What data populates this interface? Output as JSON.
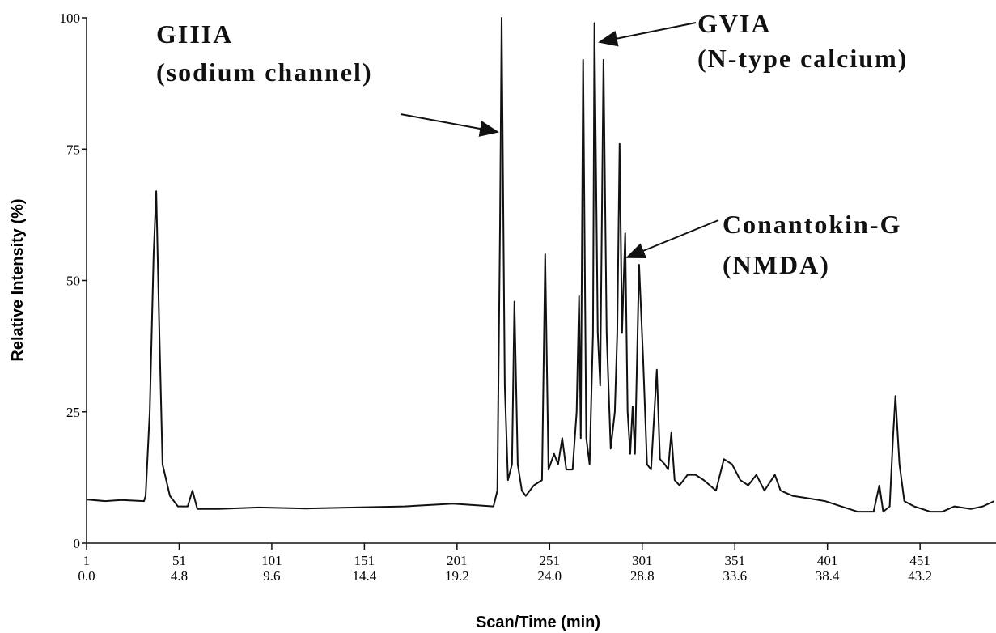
{
  "chart_data": {
    "type": "line",
    "x_label": "Scan/Time (min)",
    "y_label": "Relative Intensity (%)",
    "x": [
      1,
      11,
      19.8,
      32,
      32.9,
      35.1,
      37.2,
      38.6,
      40.3,
      42,
      46,
      50.3,
      55.6,
      58.2,
      60.8,
      72.2,
      94,
      120.2,
      146.4,
      172.6,
      198.8,
      220.7,
      222.8,
      224.2,
      225.1,
      226.8,
      228.5,
      230.7,
      232,
      233.8,
      236,
      238.1,
      242.5,
      246.9,
      248.6,
      250.4,
      253.4,
      255.6,
      257.8,
      260,
      263.4,
      265.6,
      266.9,
      267.8,
      269.1,
      270.8,
      272.6,
      274.4,
      275.2,
      277,
      278.3,
      280.1,
      281.8,
      284,
      286.2,
      287.5,
      288.8,
      290.1,
      291.8,
      293.1,
      294.5,
      295.8,
      297.1,
      299.3,
      301.5,
      303.6,
      305.8,
      308.9,
      310.6,
      313.2,
      315,
      316.7,
      318.5,
      321.1,
      325.5,
      329.8,
      334.2,
      340.8,
      345.1,
      349.5,
      353.9,
      358.2,
      362.6,
      367,
      372.6,
      375.7,
      382.2,
      391,
      399.7,
      408.4,
      417.2,
      425.9,
      429,
      431.1,
      434.6,
      436.4,
      437.7,
      439.9,
      442.5,
      447.8,
      456.5,
      463.1,
      469.6,
      478.4,
      484.9,
      491
    ],
    "series": [
      {
        "color": "#111111",
        "values": [
          8.3,
          8,
          8.2,
          8,
          9,
          25,
          55,
          67,
          40,
          15,
          9,
          7,
          7,
          10,
          6.5,
          6.5,
          6.8,
          6.6,
          6.8,
          7,
          7.5,
          7,
          10,
          60,
          100,
          30,
          12,
          15,
          46,
          15,
          10,
          9,
          11,
          12,
          55,
          14,
          17,
          15,
          20,
          14,
          14,
          25,
          47,
          20,
          92,
          20,
          15,
          40,
          99,
          40,
          30,
          92,
          40,
          18,
          25,
          40,
          76,
          40,
          59,
          25,
          17,
          26,
          17,
          53,
          35,
          15,
          14,
          33,
          16,
          15,
          14,
          21,
          12,
          11,
          13,
          13,
          12,
          10,
          16,
          15,
          12,
          11,
          13,
          10,
          13,
          10,
          9,
          8.5,
          8,
          7,
          6,
          6,
          11,
          6,
          7,
          20,
          28,
          15,
          8,
          7,
          6,
          6,
          7,
          6.5,
          7,
          8
        ]
      }
    ],
    "xlim": [
      1,
      492
    ],
    "ylim": [
      0,
      100
    ],
    "xticks": [
      1,
      51,
      101,
      151,
      201,
      251,
      301,
      351,
      401,
      451
    ],
    "xtick_times": [
      "0.0",
      "4.8",
      "9.6",
      "14.4",
      "19.2",
      "24.0",
      "28.8",
      "33.6",
      "38.4",
      "43.2"
    ],
    "yticks": [
      0,
      25,
      50,
      75,
      100
    ],
    "annotations": [
      [
        "GIIIA",
        "(sodium channel)"
      ],
      [
        "GVIA",
        "(N-type calcium)"
      ],
      [
        "Conantokin-G",
        "(NMDA)"
      ]
    ]
  }
}
